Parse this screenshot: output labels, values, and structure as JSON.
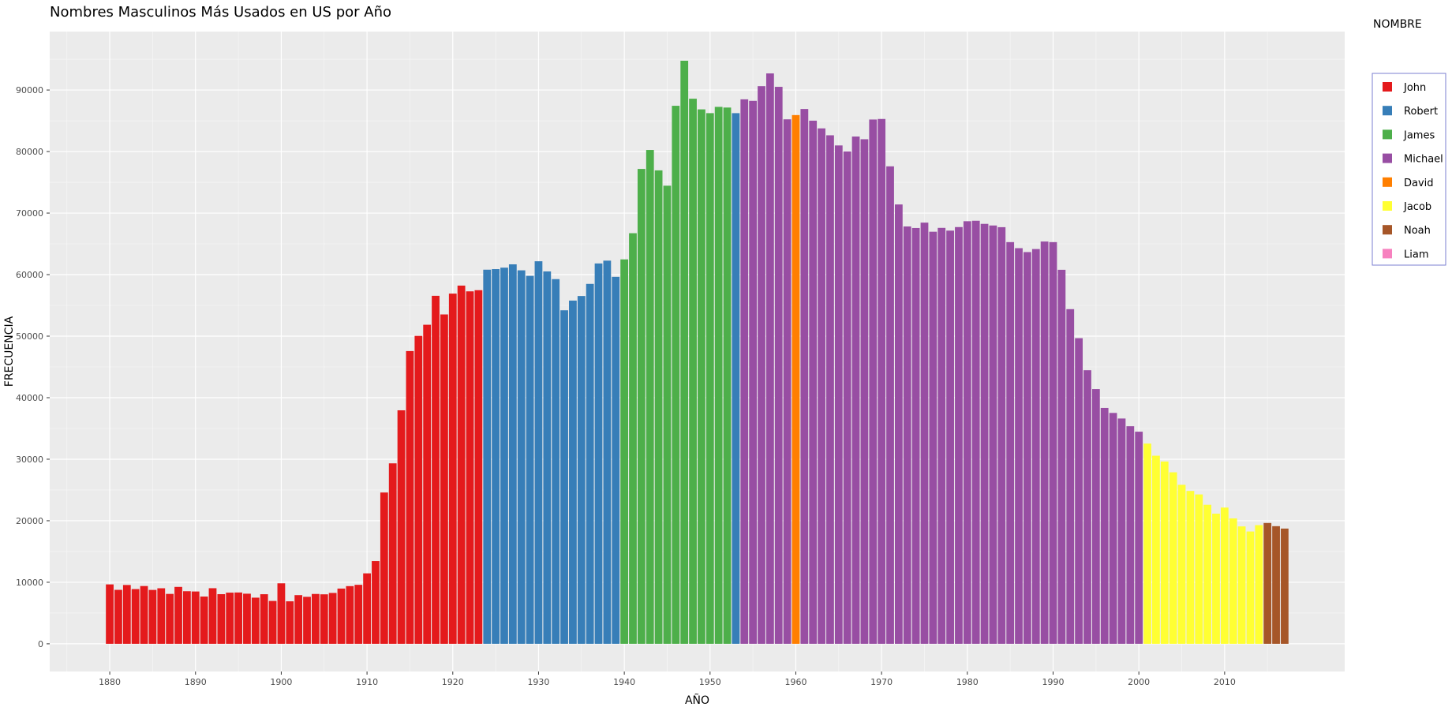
{
  "chart_data": {
    "type": "bar",
    "title": "Nombres Masculinos Más Usados en US por Año",
    "xlabel": "AÑO",
    "ylabel": "FRECUENCIA",
    "xlim": [
      1873,
      2024
    ],
    "ylim": [
      -4500,
      99500
    ],
    "x_ticks": [
      "1880",
      "1890",
      "1900",
      "1910",
      "1920",
      "1930",
      "1940",
      "1950",
      "1960",
      "1970",
      "1980",
      "1990",
      "2000",
      "2010"
    ],
    "y_ticks": [
      "0",
      "10000",
      "20000",
      "30000",
      "40000",
      "50000",
      "60000",
      "70000",
      "80000",
      "90000"
    ],
    "grid": true,
    "legend_position": "right",
    "legend": {
      "title": "NOMBRE",
      "entries": [
        {
          "name": "John",
          "color": "#E41A1C"
        },
        {
          "name": "Robert",
          "color": "#377EB8"
        },
        {
          "name": "James",
          "color": "#4DAF4A"
        },
        {
          "name": "Michael",
          "color": "#984EA3"
        },
        {
          "name": "David",
          "color": "#FF7F00"
        },
        {
          "name": "Jacob",
          "color": "#FFFF33"
        },
        {
          "name": "Noah",
          "color": "#A65628"
        },
        {
          "name": "Liam",
          "color": "#F781BF"
        }
      ]
    },
    "start_year": 1880,
    "values": [
      9655,
      8769,
      9557,
      8894,
      9388,
      8756,
      9026,
      8110,
      9248,
      8548,
      8502,
      7681,
      9034,
      8067,
      8316,
      8340,
      8144,
      7499,
      8059,
      6965,
      9829,
      6905,
      7911,
      7637,
      8100,
      8042,
      8266,
      8977,
      9373,
      9586,
      11450,
      13447,
      24589,
      29328,
      37948,
      47577,
      50040,
      51852,
      56556,
      53527,
      56914,
      58215,
      57280,
      57469,
      60801,
      60897,
      61130,
      61671,
      60695,
      59800,
      62171,
      60518,
      59266,
      54203,
      55777,
      56524,
      58493,
      61814,
      62271,
      59640,
      62475,
      66730,
      77174,
      80260,
      76940,
      74449,
      87437,
      94758,
      88588,
      86855,
      86241,
      87259,
      87153,
      86240,
      88487,
      88243,
      90629,
      92699,
      90518,
      85238,
      85928,
      86918,
      85020,
      83767,
      82642,
      80993,
      80013,
      82440,
      82002,
      85208,
      85296,
      77597,
      71402,
      67826,
      67576,
      68450,
      66971,
      67596,
      67151,
      67727,
      68678,
      68754,
      68247,
      67983,
      67709,
      65283,
      64297,
      63662,
      64156,
      65378,
      65282,
      60785,
      54386,
      49670,
      44463,
      41400,
      38336,
      37522,
      36614,
      35361,
      34473,
      32541,
      30570,
      29627,
      27872,
      25840,
      24838,
      24275,
      22593,
      21153,
      22140,
      20379,
      19079,
      18254,
      19286,
      19635,
      19117,
      18728
    ],
    "names": [
      "John",
      "John",
      "John",
      "John",
      "John",
      "John",
      "John",
      "John",
      "John",
      "John",
      "John",
      "John",
      "John",
      "John",
      "John",
      "John",
      "John",
      "John",
      "John",
      "John",
      "John",
      "John",
      "John",
      "John",
      "John",
      "John",
      "John",
      "John",
      "John",
      "John",
      "John",
      "John",
      "John",
      "John",
      "John",
      "John",
      "John",
      "John",
      "John",
      "John",
      "John",
      "John",
      "John",
      "John",
      "Robert",
      "Robert",
      "Robert",
      "Robert",
      "Robert",
      "Robert",
      "Robert",
      "Robert",
      "Robert",
      "Robert",
      "Robert",
      "Robert",
      "Robert",
      "Robert",
      "Robert",
      "Robert",
      "James",
      "James",
      "James",
      "James",
      "James",
      "James",
      "James",
      "James",
      "James",
      "James",
      "James",
      "James",
      "James",
      "Robert",
      "Michael",
      "Michael",
      "Michael",
      "Michael",
      "Michael",
      "Michael",
      "David",
      "Michael",
      "Michael",
      "Michael",
      "Michael",
      "Michael",
      "Michael",
      "Michael",
      "Michael",
      "Michael",
      "Michael",
      "Michael",
      "Michael",
      "Michael",
      "Michael",
      "Michael",
      "Michael",
      "Michael",
      "Michael",
      "Michael",
      "Michael",
      "Michael",
      "Michael",
      "Michael",
      "Michael",
      "Michael",
      "Michael",
      "Michael",
      "Michael",
      "Michael",
      "Michael",
      "Michael",
      "Michael",
      "Michael",
      "Michael",
      "Michael",
      "Michael",
      "Michael",
      "Michael",
      "Michael",
      "Michael",
      "Jacob",
      "Jacob",
      "Jacob",
      "Jacob",
      "Jacob",
      "Jacob",
      "Jacob",
      "Jacob",
      "Jacob",
      "Jacob",
      "Jacob",
      "Jacob",
      "Jacob",
      "Jacob",
      "Noah",
      "Noah",
      "Noah",
      "Noah",
      "Liam"
    ]
  }
}
